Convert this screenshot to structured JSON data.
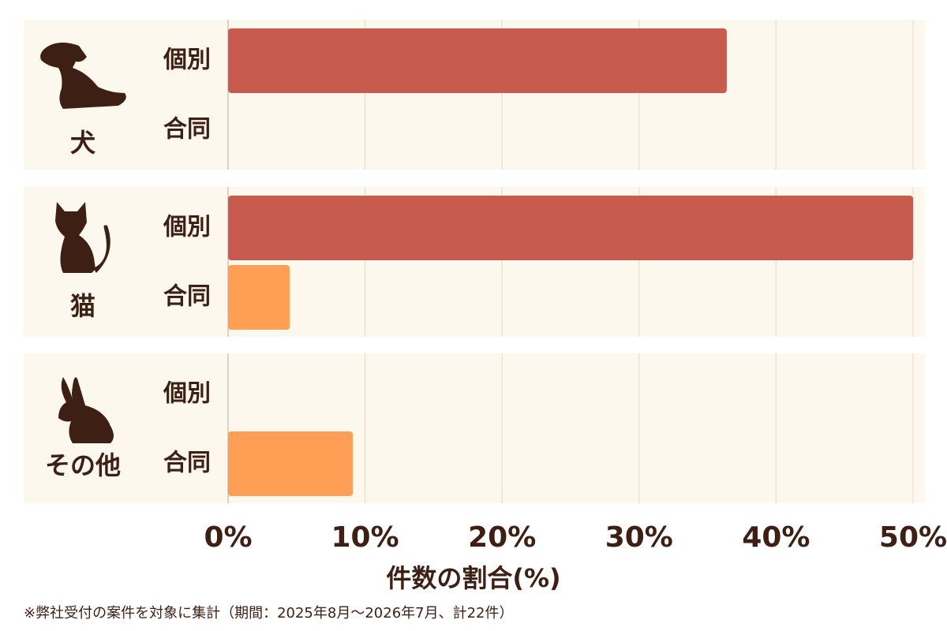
{
  "chart_data": {
    "type": "bar",
    "orientation": "horizontal",
    "categories": [
      "犬",
      "猫",
      "その他"
    ],
    "series": [
      {
        "name": "個別",
        "color": "#c75b4e",
        "values": [
          36.4,
          50,
          0
        ]
      },
      {
        "name": "合同",
        "color": "#ff9f55",
        "values": [
          0,
          4.5,
          9.1
        ]
      }
    ],
    "xlim": [
      0,
      50
    ],
    "xticks": [
      {
        "value": 0,
        "label": "0%"
      },
      {
        "value": 10,
        "label": "10%"
      },
      {
        "value": 20,
        "label": "20%"
      },
      {
        "value": 30,
        "label": "30%"
      },
      {
        "value": 40,
        "label": "40%"
      },
      {
        "value": 50,
        "label": "50%"
      }
    ],
    "xlabel": "件数の割合(%)",
    "grid": true,
    "footnote": "※弊社受付の案件を対象に集計（期間：2025年8月〜2026年7月、計22件）"
  }
}
